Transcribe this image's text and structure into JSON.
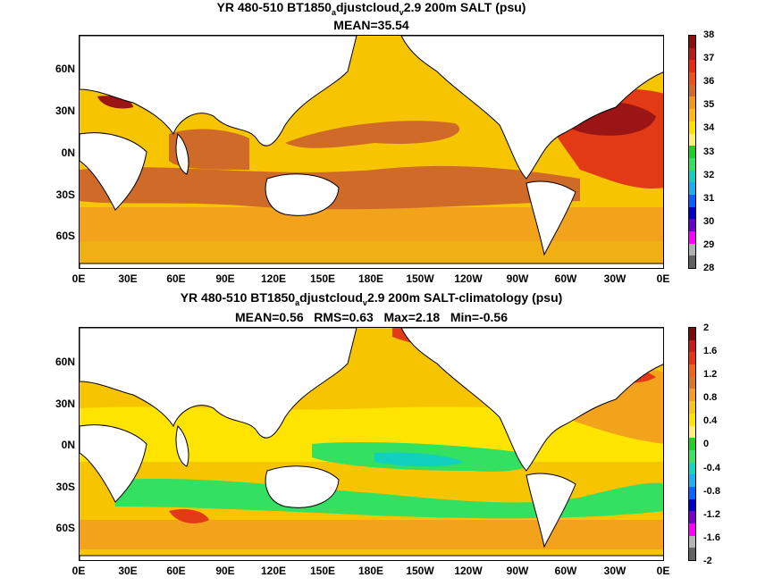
{
  "panels": [
    {
      "title_pre": "YR 480-510 BT1850",
      "title_sub1": "a",
      "title_mid": "djustcloud",
      "title_sub2": "v",
      "title_post": "2.9 200m SALT (psu)",
      "stats": "MEAN=35.54",
      "ocean_color": "#f5c800",
      "colorbar_labels": [
        "38",
        "37",
        "36",
        "35",
        "34",
        "33",
        "32",
        "31",
        "30",
        "29",
        "28"
      ],
      "colorbar_colors": [
        "#8b0f0f",
        "#b51c1c",
        "#e82a12",
        "#f0501a",
        "#d26a28",
        "#ee9a1e",
        "#fbbd12",
        "#ffe100",
        "#fff070",
        "#18d028",
        "#33e060",
        "#10d0c0",
        "#19b0ee",
        "#0a60ff",
        "#0000c8",
        "#6a00c8",
        "#ff00ff",
        "#b0b0b0",
        "#606060"
      ]
    },
    {
      "title_pre": "YR 480-510 BT1850",
      "title_sub1": "a",
      "title_mid": "djustcloud",
      "title_sub2": "v",
      "title_post": "2.9 200m SALT-climatology (psu)",
      "stats": "MEAN=0.56   RMS=0.63   Max=2.18   Min=-0.56",
      "ocean_color": "#f5c800",
      "colorbar_labels": [
        "2",
        "1.6",
        "1.2",
        "0.8",
        "0.4",
        "0",
        "-0.4",
        "-0.8",
        "-1.2",
        "-1.6",
        "-2"
      ],
      "colorbar_colors": [
        "#7a0a0a",
        "#c81c1c",
        "#e8321a",
        "#f0641e",
        "#d7782e",
        "#f0a028",
        "#f8c818",
        "#ffe400",
        "#fff07c",
        "#1ed22a",
        "#3ee066",
        "#10d8c4",
        "#1cb4f0",
        "#0a64ff",
        "#0000c8",
        "#7800c8",
        "#ff00ff",
        "#b4b4b4",
        "#646464"
      ]
    }
  ],
  "lat_labels": [
    "60N",
    "30N",
    "0N",
    "30S",
    "60S"
  ],
  "lon_labels": [
    "0E",
    "30E",
    "60E",
    "90E",
    "120E",
    "150E",
    "180E",
    "150W",
    "120W",
    "90W",
    "60W",
    "30W",
    "0E"
  ]
}
